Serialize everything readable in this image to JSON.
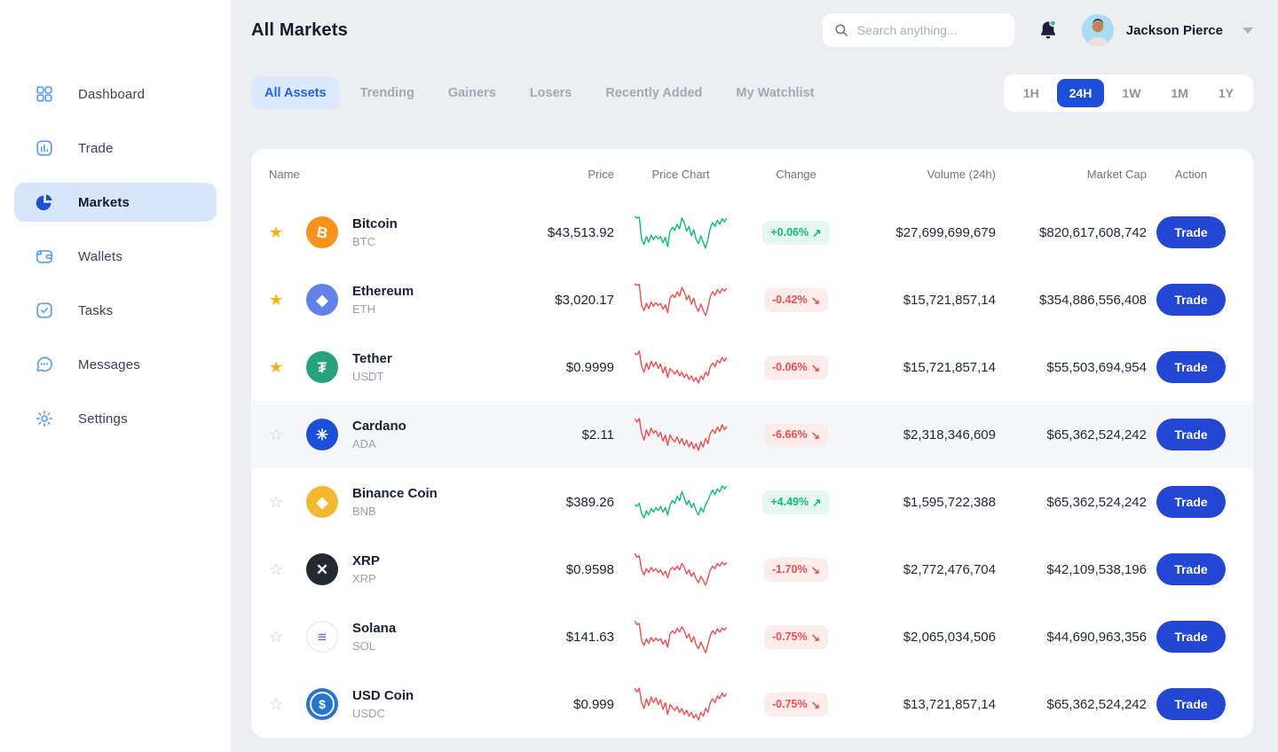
{
  "colors": {
    "accent": "#2447D3",
    "timeframe_active": "#1D4ED8",
    "positive": "#10B981",
    "negative": "#F14D4D",
    "positive_bg": "#E4F7F0",
    "negative_bg": "#FDECEC",
    "star": "#F0B50E",
    "sidebar_icon": "#5FA0F9",
    "active_item_bg": "#D8E6FB"
  },
  "icons": {
    "star_filled": "★",
    "star_outline": "☆",
    "arrow_up": "↗",
    "arrow_down": "↘"
  },
  "sidebar": {
    "items": [
      {
        "label": "Dashboard",
        "icon": "dashboard-grid-icon",
        "active": false
      },
      {
        "label": "Trade",
        "icon": "trade-chart-icon",
        "active": false
      },
      {
        "label": "Markets",
        "icon": "markets-pie-icon",
        "active": true
      },
      {
        "label": "Wallets",
        "icon": "wallets-icon",
        "active": false
      },
      {
        "label": "Tasks",
        "icon": "tasks-check-icon",
        "active": false
      },
      {
        "label": "Messages",
        "icon": "messages-chat-icon",
        "active": false
      },
      {
        "label": "Settings",
        "icon": "settings-gear-icon",
        "active": false
      }
    ]
  },
  "header": {
    "title": "All Markets",
    "search_placeholder": "Search anything...",
    "user_name": "Jackson Pierce",
    "notification_dot": true
  },
  "tabs": [
    {
      "label": "All Assets",
      "active": true
    },
    {
      "label": "Trending",
      "active": false
    },
    {
      "label": "Gainers",
      "active": false
    },
    {
      "label": "Losers",
      "active": false
    },
    {
      "label": "Recently Added",
      "active": false
    },
    {
      "label": "My Watchlist",
      "active": false
    }
  ],
  "timeframes": [
    {
      "label": "1H",
      "active": false
    },
    {
      "label": "24H",
      "active": true
    },
    {
      "label": "1W",
      "active": false
    },
    {
      "label": "1M",
      "active": false
    },
    {
      "label": "1Y",
      "active": false
    }
  ],
  "table": {
    "columns": [
      "Name",
      "Price",
      "Price Chart",
      "Change",
      "Volume (24h)",
      "Market Cap",
      "Action"
    ],
    "action_label": "Trade",
    "rows": [
      {
        "name": "Bitcoin",
        "symbol": "BTC",
        "price": "$43,513.92",
        "change": "+0.06%",
        "direction": "up",
        "volume": "$27,699,699,679",
        "market_cap": "$820,617,608,742",
        "starred": true,
        "highlighted": false,
        "icon": {
          "bg": "#F7931A",
          "fg": "#FFFFFF",
          "glyph": "B",
          "tilt": true
        },
        "spark": [
          60,
          58,
          59,
          30,
          24,
          34,
          27,
          36,
          30,
          35,
          31,
          34,
          26,
          33,
          21,
          41,
          46,
          42,
          50,
          44,
          58,
          52,
          41,
          47,
          35,
          43,
          31,
          25,
          35,
          27,
          19,
          31,
          45,
          52,
          47,
          55,
          50,
          57,
          53,
          58
        ]
      },
      {
        "name": "Ethereum",
        "symbol": "ETH",
        "price": "$3,020.17",
        "change": "-0.42%",
        "direction": "down",
        "volume": "$15,721,857,14",
        "market_cap": "$354,886,556,408",
        "starred": true,
        "highlighted": false,
        "icon": {
          "bg": "#6481E8",
          "fg": "#FFFFFF",
          "glyph": "◆"
        },
        "spark": [
          62,
          60,
          61,
          32,
          25,
          35,
          28,
          37,
          31,
          36,
          32,
          35,
          27,
          33,
          22,
          42,
          47,
          43,
          51,
          45,
          57,
          51,
          40,
          46,
          34,
          42,
          30,
          24,
          34,
          26,
          18,
          30,
          44,
          51,
          46,
          54,
          49,
          55,
          52,
          56
        ]
      },
      {
        "name": "Tether",
        "symbol": "USDT",
        "price": "$0.9999",
        "change": "-0.06%",
        "direction": "down",
        "volume": "$15,721,857,14",
        "market_cap": "$55,503,694,954",
        "starred": true,
        "highlighted": false,
        "icon": {
          "bg": "#26A17B",
          "fg": "#FFFFFF",
          "glyph": "₮"
        },
        "spark": [
          55,
          53,
          57,
          40,
          34,
          44,
          37,
          46,
          40,
          45,
          38,
          43,
          33,
          40,
          28,
          38,
          35,
          32,
          36,
          30,
          34,
          28,
          32,
          26,
          30,
          24,
          28,
          22,
          30,
          26,
          34,
          30,
          40,
          44,
          40,
          47,
          44,
          50,
          46,
          50
        ]
      },
      {
        "name": "Cardano",
        "symbol": "ADA",
        "price": "$2.11",
        "change": "-6.66%",
        "direction": "down",
        "volume": "$2,318,346,609",
        "market_cap": "$65,362,524,242",
        "starred": false,
        "highlighted": true,
        "icon": {
          "bg": "#1A4FD6",
          "fg": "#FFFFFF",
          "glyph": "✳"
        },
        "spark": [
          58,
          54,
          58,
          41,
          33,
          45,
          38,
          47,
          41,
          44,
          37,
          42,
          32,
          39,
          27,
          39,
          34,
          31,
          37,
          29,
          35,
          27,
          33,
          25,
          31,
          23,
          29,
          21,
          31,
          25,
          35,
          29,
          41,
          45,
          41,
          48,
          43,
          51,
          45,
          49
        ]
      },
      {
        "name": "Binance Coin",
        "symbol": "BNB",
        "price": "$389.26",
        "change": "+4.49%",
        "direction": "up",
        "volume": "$1,595,722,388",
        "market_cap": "$65,362,524,242",
        "starred": false,
        "highlighted": false,
        "icon": {
          "bg": "#F3BA2F",
          "fg": "#FFFFFF",
          "glyph": "◈"
        },
        "spark": [
          40,
          38,
          42,
          28,
          22,
          32,
          26,
          35,
          30,
          36,
          32,
          38,
          30,
          36,
          26,
          40,
          46,
          42,
          52,
          46,
          58,
          50,
          40,
          46,
          36,
          42,
          32,
          26,
          36,
          30,
          40,
          46,
          54,
          60,
          54,
          62,
          58,
          66,
          62,
          66
        ]
      },
      {
        "name": "XRP",
        "symbol": "XRP",
        "price": "$0.9598",
        "change": "-1.70%",
        "direction": "down",
        "volume": "$2,772,476,704",
        "market_cap": "$42,109,538,196",
        "starred": false,
        "highlighted": false,
        "icon": {
          "bg": "#23292F",
          "fg": "#FFFFFF",
          "glyph": "✕"
        },
        "spark": [
          66,
          60,
          62,
          40,
          32,
          42,
          36,
          44,
          38,
          42,
          36,
          40,
          32,
          38,
          28,
          40,
          44,
          40,
          46,
          40,
          50,
          44,
          34,
          40,
          30,
          36,
          26,
          20,
          30,
          24,
          16,
          28,
          40,
          46,
          42,
          50,
          46,
          52,
          48,
          52
        ]
      },
      {
        "name": "Solana",
        "symbol": "SOL",
        "price": "$141.63",
        "change": "-0.75%",
        "direction": "down",
        "volume": "$2,065,034,506",
        "market_cap": "$44,690,963,356",
        "starred": false,
        "highlighted": false,
        "icon": {
          "bg": "#FFFFFF",
          "fg": "#9945FF",
          "glyph": "≡",
          "border": "#E8EBF0",
          "gradient": true
        },
        "spark": [
          64,
          58,
          60,
          34,
          27,
          37,
          30,
          39,
          33,
          38,
          34,
          37,
          29,
          35,
          24,
          44,
          49,
          45,
          53,
          47,
          55,
          49,
          38,
          44,
          32,
          40,
          28,
          22,
          32,
          24,
          16,
          28,
          42,
          49,
          44,
          52,
          47,
          53,
          50,
          54
        ]
      },
      {
        "name": "USD Coin",
        "symbol": "USDC",
        "price": "$0.999",
        "change": "-0.75%",
        "direction": "down",
        "volume": "$13,721,857,14",
        "market_cap": "$65,362,524,242",
        "starred": false,
        "highlighted": false,
        "icon": {
          "bg": "#2775CA",
          "fg": "#FFFFFF",
          "glyph": "$",
          "ring": true
        },
        "spark": [
          56,
          52,
          56,
          41,
          35,
          45,
          38,
          47,
          41,
          46,
          39,
          44,
          34,
          41,
          29,
          39,
          36,
          33,
          37,
          31,
          35,
          29,
          33,
          27,
          31,
          25,
          29,
          23,
          31,
          27,
          35,
          31,
          41,
          45,
          41,
          48,
          45,
          51,
          47,
          51
        ]
      }
    ]
  }
}
